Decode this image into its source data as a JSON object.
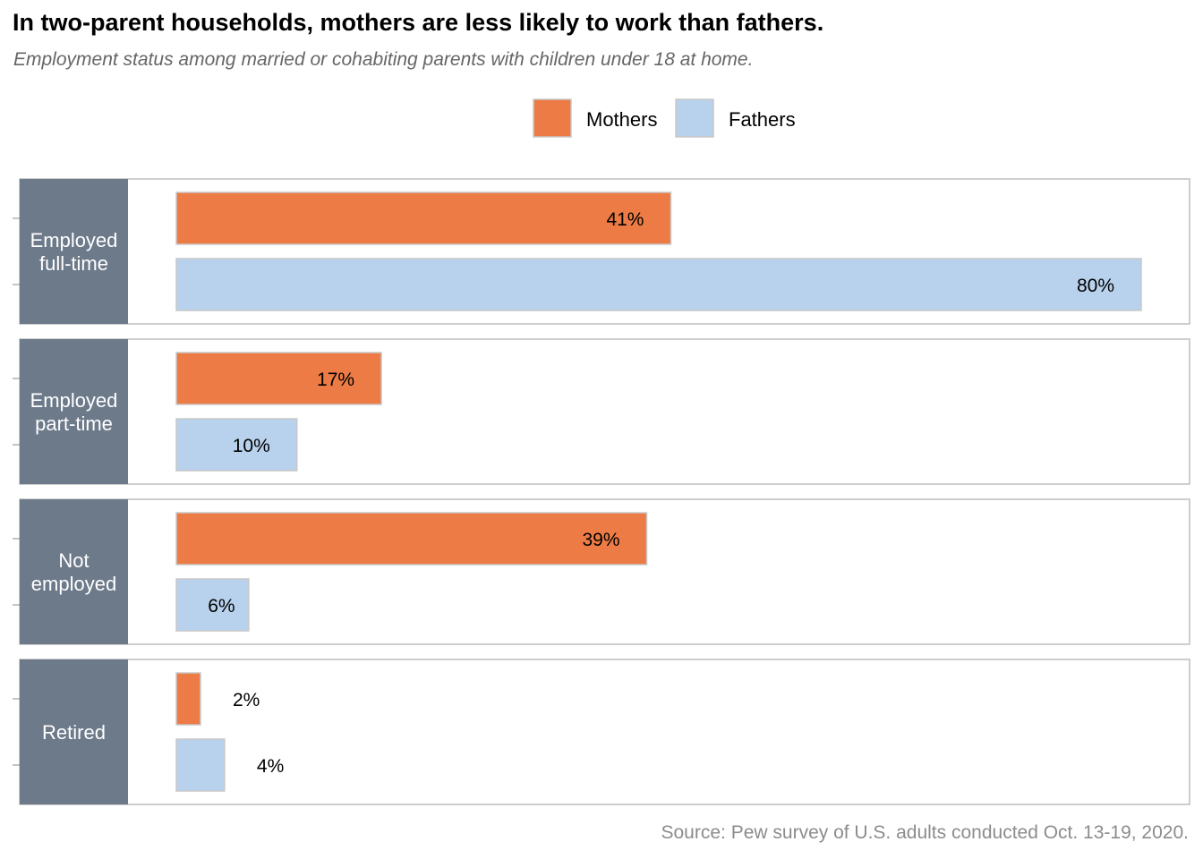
{
  "title": "In two-parent households, mothers are less likely to work than fathers.",
  "subtitle": "Employment status among married or cohabiting parents with children under 18 at home.",
  "source": "Source: Pew survey of U.S. adults conducted Oct. 13-19, 2020.",
  "colors": {
    "mothers": "#ed7b45",
    "fathers": "#b8d1ec",
    "label_bg": "#6d7a8a"
  },
  "chart_data": {
    "type": "bar",
    "orientation": "horizontal",
    "title": "In two-parent households, mothers are less likely to work than fathers.",
    "subtitle": "Employment status among married or cohabiting parents with children under 18 at home.",
    "categories": [
      [
        "Employed",
        "full-time"
      ],
      [
        "Employed",
        "part-time"
      ],
      [
        "Not",
        "employed"
      ],
      [
        "Retired"
      ]
    ],
    "series": [
      {
        "name": "Mothers",
        "values": [
          41,
          17,
          39,
          2
        ],
        "labels": [
          "41%",
          "17%",
          "39%",
          "2%"
        ]
      },
      {
        "name": "Fathers",
        "values": [
          80,
          10,
          6,
          4
        ],
        "labels": [
          "80%",
          "10%",
          "6%",
          "4%"
        ]
      }
    ],
    "unit": "%",
    "xlim": [
      0,
      80
    ],
    "legend_position": "top-center",
    "grid": false
  }
}
